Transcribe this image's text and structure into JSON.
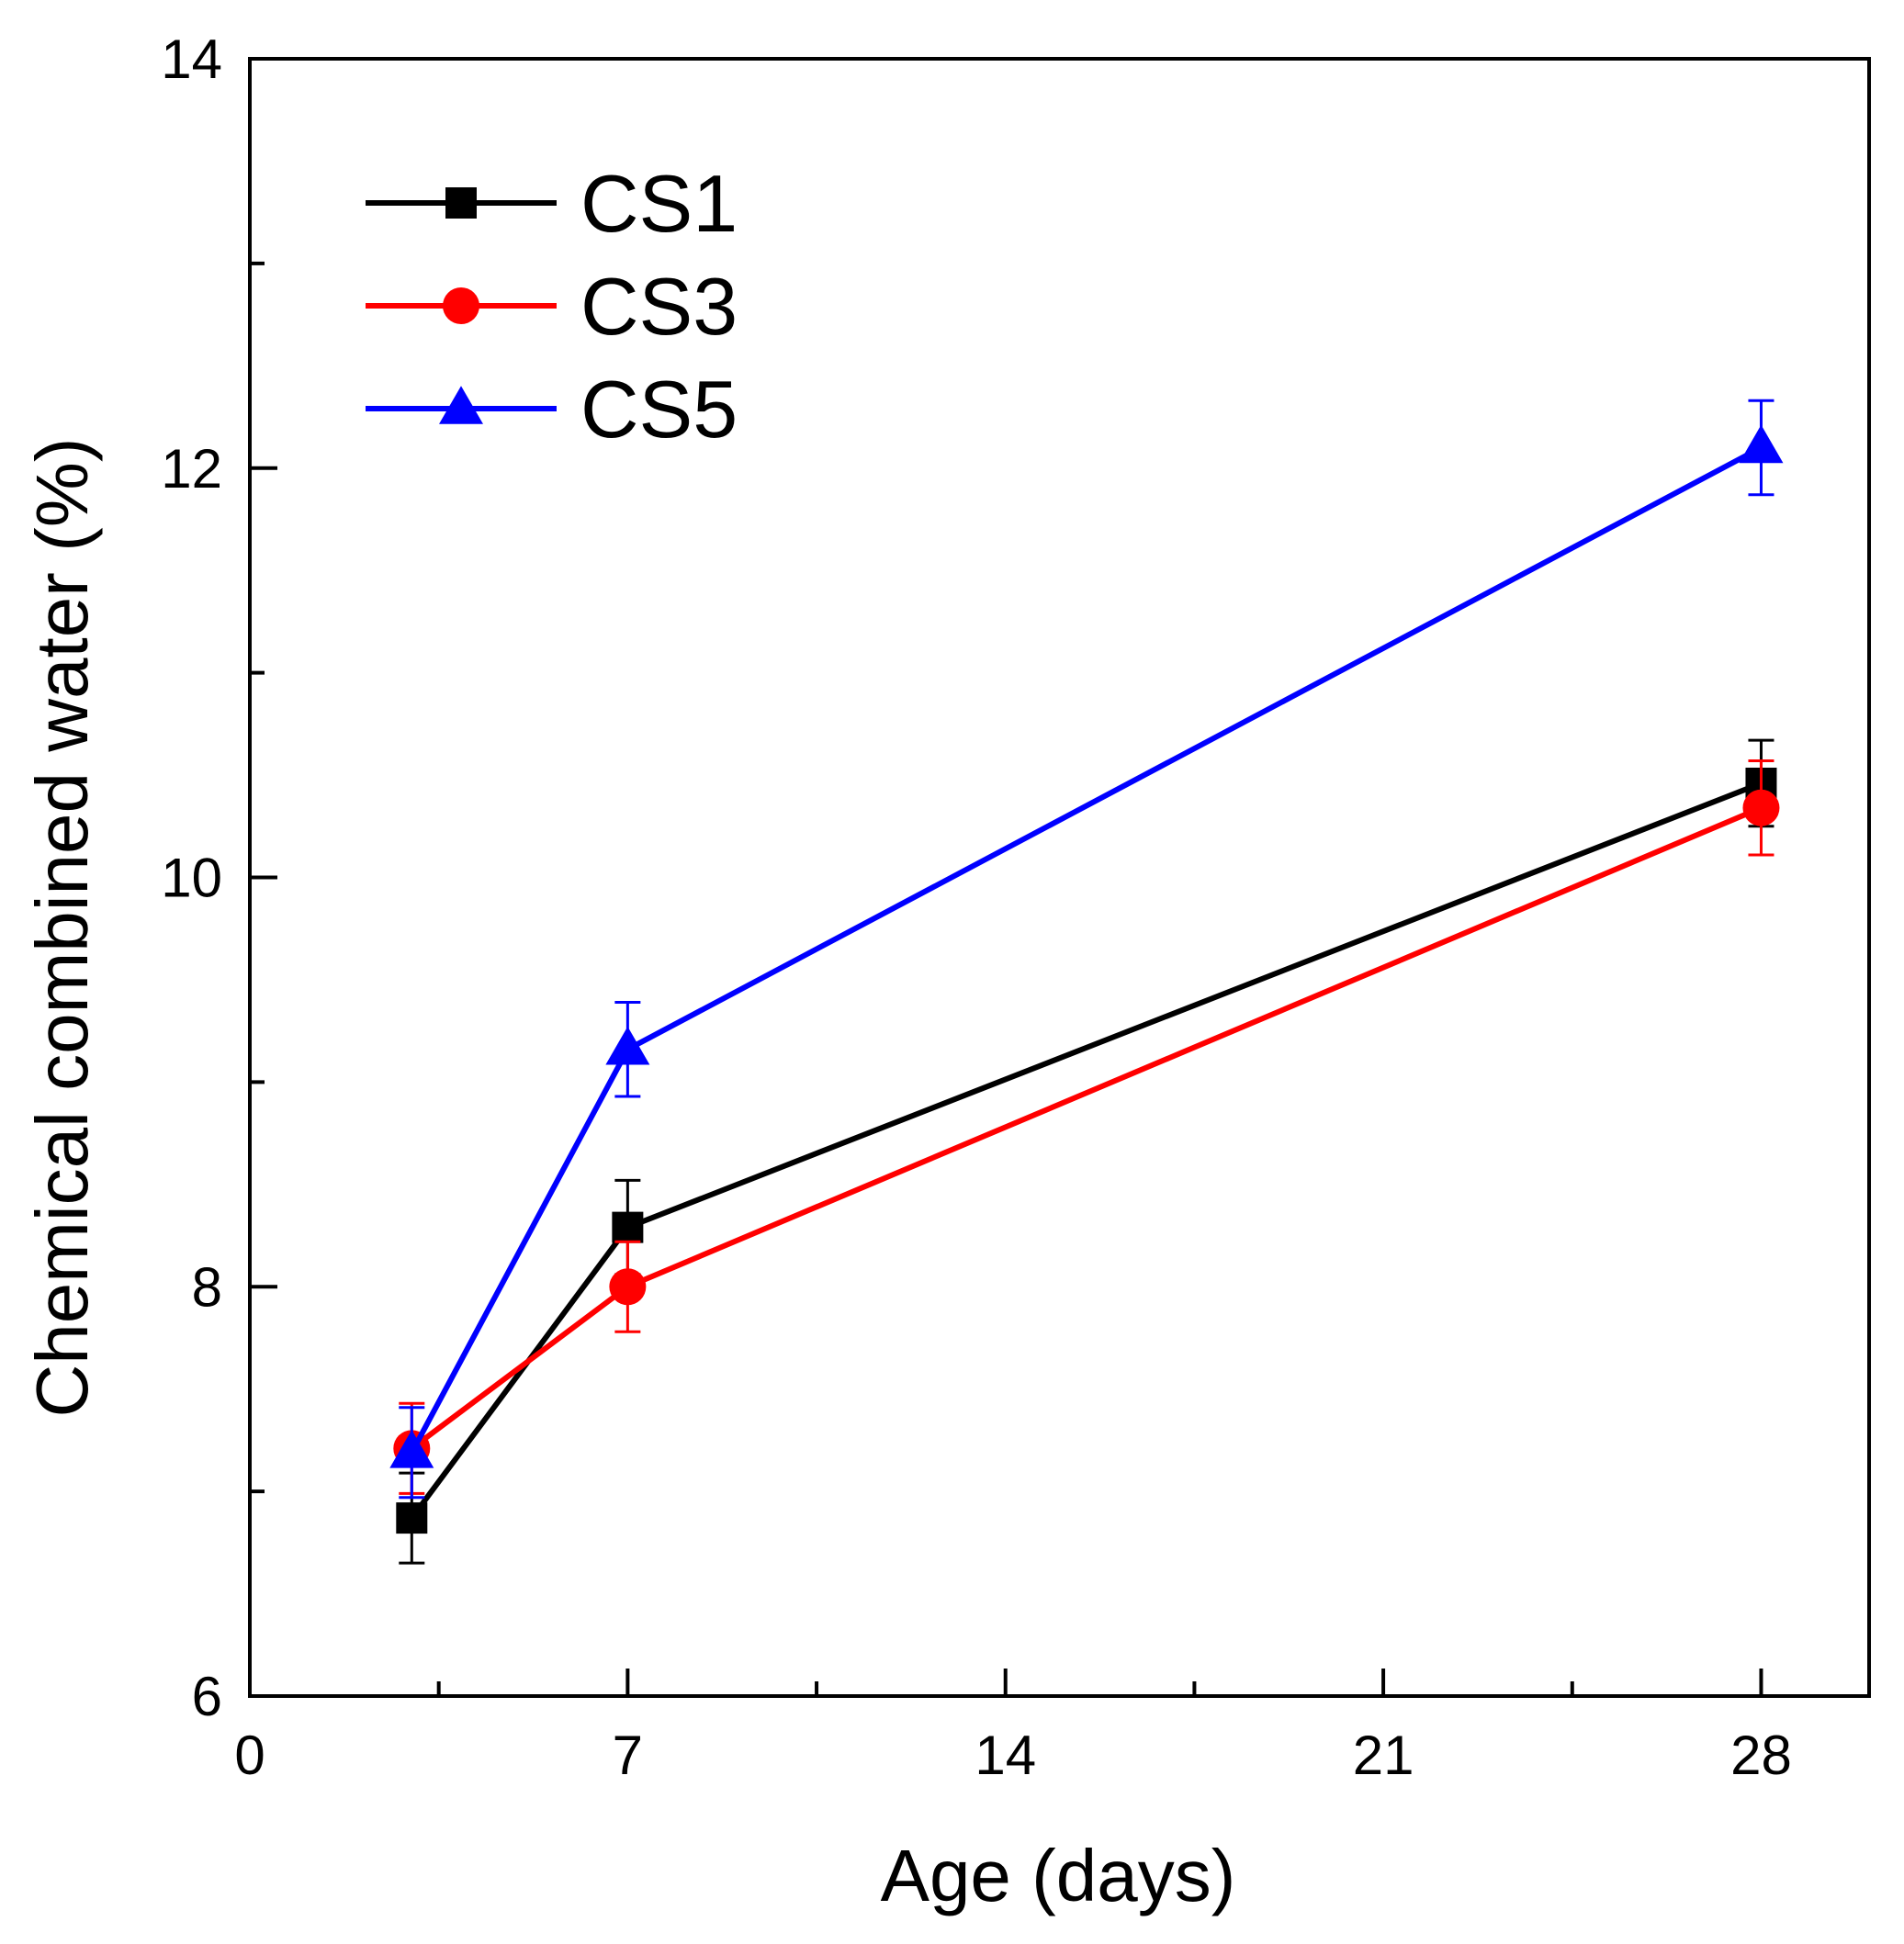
{
  "chart_data": {
    "type": "line",
    "title": "",
    "xlabel": "Age (days)",
    "ylabel": "Chemical combined water (%)",
    "xlim": [
      0,
      30
    ],
    "ylim": [
      6,
      14
    ],
    "xticks": [
      0,
      7,
      14,
      21,
      28
    ],
    "yticks": [
      6,
      8,
      10,
      12,
      14
    ],
    "xtick_labels": [
      "0",
      "7",
      "14",
      "21",
      "28"
    ],
    "ytick_labels": [
      "6",
      "8",
      "10",
      "12",
      "14"
    ],
    "x_minor_ticks": [
      3.5,
      10.5,
      17.5,
      24.5
    ],
    "y_minor_ticks": [
      7,
      9,
      11,
      13
    ],
    "grid": false,
    "legend_position": "top-left",
    "x": [
      3,
      7,
      28
    ],
    "series": [
      {
        "name": "CS1",
        "color": "#000000",
        "marker": "square",
        "values": [
          6.87,
          8.29,
          10.46
        ],
        "errors": [
          0.22,
          0.23,
          0.21
        ]
      },
      {
        "name": "CS3",
        "color": "#ff0000",
        "marker": "circle",
        "values": [
          7.21,
          8.0,
          10.34
        ],
        "errors": [
          0.22,
          0.22,
          0.23
        ]
      },
      {
        "name": "CS5",
        "color": "#0000ff",
        "marker": "triangle",
        "values": [
          7.19,
          9.16,
          12.1
        ],
        "errors": [
          0.22,
          0.23,
          0.23
        ]
      }
    ]
  }
}
